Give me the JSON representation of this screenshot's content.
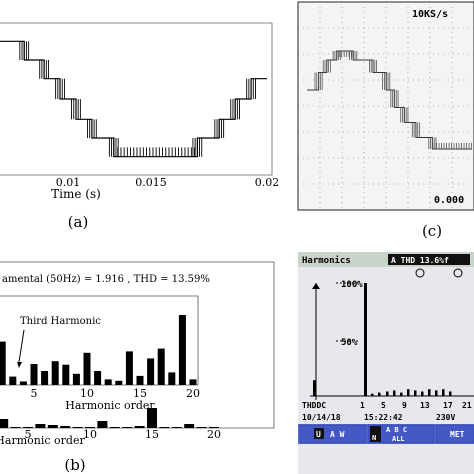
{
  "chart_data": [
    {
      "id": "a",
      "type": "line",
      "panel_label": "(a)",
      "xlabel": "Time (s)",
      "x_ticks": [
        "0.01",
        "0.015",
        "0.02"
      ],
      "xlim": [
        0.005,
        0.02
      ],
      "ylim": [
        -1,
        1
      ],
      "series": [
        {
          "x": [
            0.004,
            0.0063,
            0.0063,
            0.0078,
            0.0078,
            0.0088,
            0.0088,
            0.0096,
            0.0096,
            0.0104,
            0.0104,
            0.0112,
            0.0112,
            0.0123,
            0.0123,
            0.0165,
            0.0165,
            0.0176,
            0.0176,
            0.0184,
            0.0184,
            0.0192,
            0.0192,
            0.02
          ],
          "y": [
            0.97,
            0.97,
            0.74,
            0.74,
            0.5,
            0.5,
            0.26,
            0.26,
            0.0,
            0.0,
            -0.26,
            -0.26,
            -0.5,
            -0.5,
            -0.74,
            -0.74,
            -0.5,
            -0.5,
            -0.26,
            -0.26,
            0.0,
            0.0,
            0.26,
            0.26
          ]
        }
      ]
    },
    {
      "id": "b",
      "type": "bar",
      "panel_label": "(b)",
      "title": "amental (50Hz) = 1.916 , THD = 13.59%",
      "annotation": "Third Harmonic",
      "inset_xlabel": "Harmonic order",
      "xlabel": "Harmonic order",
      "inset_x_ticks": [
        "5",
        "10",
        "15",
        "20"
      ],
      "x_ticks": [
        "5",
        "10",
        "15",
        "20"
      ],
      "inset": {
        "categories": [
          2,
          3,
          4,
          5,
          6,
          7,
          8,
          9,
          10,
          11,
          12,
          13,
          14,
          15,
          16,
          17,
          18,
          19,
          20
        ],
        "values": [
          0.62,
          0.12,
          0.05,
          0.3,
          0.2,
          0.34,
          0.29,
          0.16,
          0.46,
          0.2,
          0.08,
          0.06,
          0.48,
          0.13,
          0.38,
          0.52,
          0.18,
          1.0,
          0.08
        ]
      },
      "main": {
        "categories": [
          0,
          1,
          2,
          3,
          4,
          5,
          6,
          7,
          8,
          9,
          10,
          11,
          12,
          13,
          14,
          15,
          16,
          17,
          18,
          19,
          20
        ],
        "values": [
          0.3,
          0.05,
          0.1,
          0.45,
          0.05,
          0.05,
          0.2,
          0.15,
          0.1,
          0.05,
          0.05,
          0.35,
          0.05,
          0.05,
          0.1,
          1.0,
          0.05,
          0.05,
          0.2,
          0.05,
          0.05
        ]
      }
    },
    {
      "id": "c",
      "type": "line",
      "panel_label": "(c)",
      "readout_top": "10KS/s",
      "readout_bottom": "0.000",
      "series": [
        {
          "x": [
            0.0,
            0.07,
            0.07,
            0.12,
            0.12,
            0.18,
            0.18,
            0.28,
            0.28,
            0.4,
            0.4,
            0.48,
            0.48,
            0.53,
            0.53,
            0.59,
            0.59,
            0.66,
            0.66,
            0.76,
            0.76,
            1.0
          ],
          "y": [
            0.2,
            0.2,
            0.55,
            0.55,
            0.8,
            0.8,
            0.98,
            0.98,
            0.8,
            0.8,
            0.55,
            0.55,
            0.2,
            0.2,
            -0.15,
            -0.15,
            -0.45,
            -0.45,
            -0.75,
            -0.75,
            -0.98,
            -0.98
          ]
        }
      ]
    },
    {
      "id": "d",
      "type": "bar",
      "header_title": "Harmonics",
      "thd_readout": "A THD 13.6%f",
      "y_ticks": [
        "100%",
        "50%"
      ],
      "x_labels": [
        "THDDC",
        "1",
        "5",
        "9",
        "13",
        "17",
        "21"
      ],
      "date": "10/14/18",
      "time": "15:22:42",
      "voltage": "230V",
      "categories": [
        "THD",
        "1",
        "3",
        "5",
        "7",
        "9",
        "11",
        "13",
        "15",
        "17",
        "19",
        "21",
        "23",
        "25"
      ],
      "values": [
        0.14,
        1.0,
        0.02,
        0.03,
        0.04,
        0.05,
        0.03,
        0.06,
        0.05,
        0.04,
        0.06,
        0.05,
        0.06,
        0.04
      ],
      "softkeys": {
        "key1_badge": "U",
        "key1_rest": "A W",
        "key2_top": "A B C",
        "key2_left": "N",
        "key2_right": "ALL",
        "key3": "MET"
      }
    }
  ]
}
